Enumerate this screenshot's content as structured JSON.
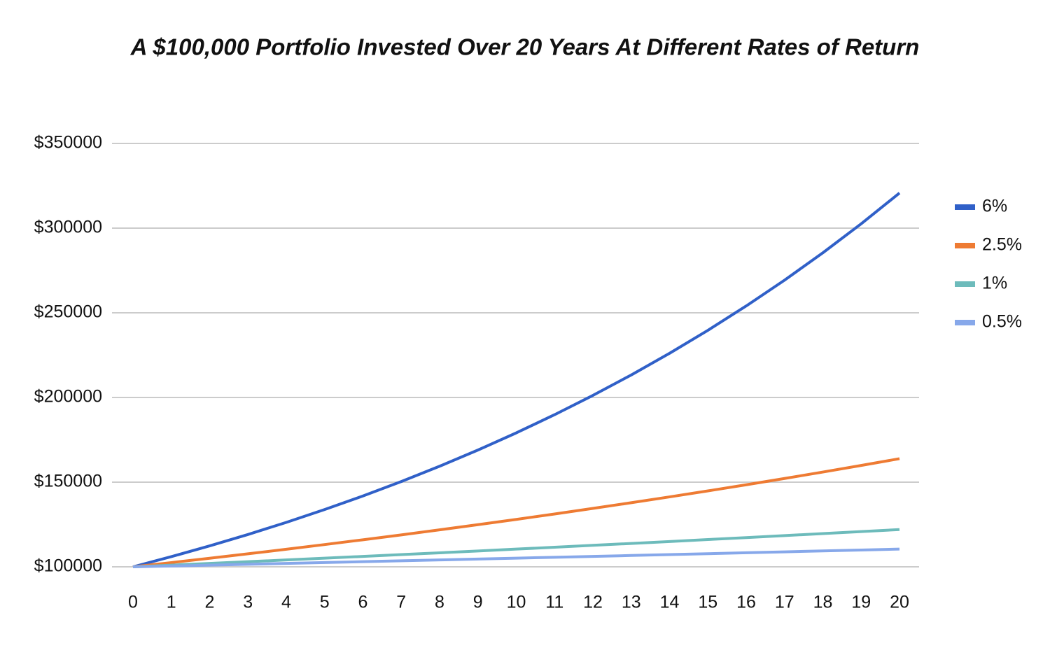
{
  "chart_data": {
    "type": "line",
    "title": "A $100,000 Portfolio Invested Over 20 Years At Different Rates of Return",
    "x": [
      0,
      1,
      2,
      3,
      4,
      5,
      6,
      7,
      8,
      9,
      10,
      11,
      12,
      13,
      14,
      15,
      16,
      17,
      18,
      19,
      20
    ],
    "xlim": [
      0,
      20
    ],
    "series": [
      {
        "name": "6%",
        "color": "#3060c8",
        "values": [
          100000,
          106000,
          112360,
          119102,
          126248,
          133823,
          141852,
          150363,
          159385,
          168948,
          179085,
          189830,
          201220,
          213293,
          226090,
          239656,
          254035,
          269277,
          285434,
          302560,
          320714
        ]
      },
      {
        "name": "2.5%",
        "color": "#ee7b33",
        "values": [
          100000,
          102500,
          105063,
          107689,
          110381,
          113141,
          115969,
          118869,
          121840,
          124886,
          128008,
          131209,
          134489,
          137851,
          141297,
          144830,
          148451,
          152162,
          155966,
          159865,
          163862
        ]
      },
      {
        "name": "1%",
        "color": "#6dbbbb",
        "values": [
          100000,
          101000,
          102010,
          103030,
          104060,
          105101,
          106152,
          107214,
          108286,
          109369,
          110462,
          111567,
          112683,
          113809,
          114947,
          116097,
          117258,
          118430,
          119615,
          120811,
          122019
        ]
      },
      {
        "name": "0.5%",
        "color": "#87a8ea",
        "values": [
          100000,
          100500,
          101003,
          101508,
          102015,
          102525,
          103038,
          103553,
          104071,
          104591,
          105114,
          105640,
          106168,
          106699,
          107232,
          107768,
          108307,
          108849,
          109393,
          109940,
          110490
        ]
      }
    ],
    "ylim": [
      100000,
      350000
    ],
    "yticks": [
      {
        "value": 100000,
        "label": "$100000"
      },
      {
        "value": 150000,
        "label": "$150000"
      },
      {
        "value": 200000,
        "label": "$200000"
      },
      {
        "value": 250000,
        "label": "$250000"
      },
      {
        "value": 300000,
        "label": "$300000"
      },
      {
        "value": 350000,
        "label": "$350000"
      }
    ],
    "grid": true,
    "legend": "right"
  }
}
